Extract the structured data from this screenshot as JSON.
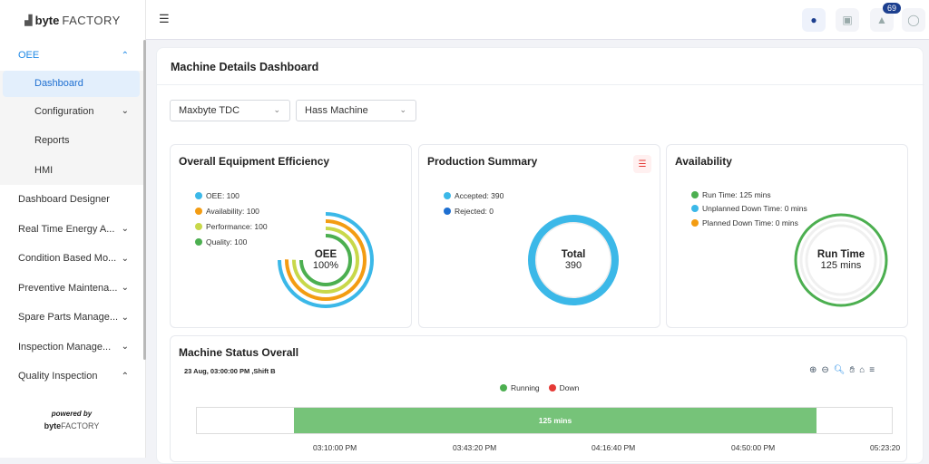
{
  "brand": {
    "logo_bold": "byte",
    "logo_rest": "FACTORY"
  },
  "sidebar": {
    "items": [
      {
        "label": "OEE",
        "expanded": true
      },
      {
        "label": "Dashboard",
        "active": true
      },
      {
        "label": "Configuration"
      },
      {
        "label": "Reports"
      },
      {
        "label": "HMI"
      },
      {
        "label": "Dashboard Designer"
      },
      {
        "label": "Real Time Energy A..."
      },
      {
        "label": "Condition Based Mo..."
      },
      {
        "label": "Preventive Maintena..."
      },
      {
        "label": "Spare Parts Manage..."
      },
      {
        "label": "Inspection Manage..."
      },
      {
        "label": "Quality Inspection"
      }
    ],
    "powered_by": "powered by",
    "powered_logo_bold": "byte",
    "powered_logo_rest": "FACTORY"
  },
  "topbar": {
    "notification_count": "69",
    "icons": [
      "chat-icon",
      "cart-icon",
      "bell-icon",
      "user-icon"
    ]
  },
  "page": {
    "title": "Machine Details Dashboard"
  },
  "filters": {
    "plant": "Maxbyte TDC",
    "machine": "Hass Machine"
  },
  "oee_card": {
    "title": "Overall Equipment Efficiency",
    "legend": [
      {
        "label": "OEE: 100",
        "color": "#3bb8e8"
      },
      {
        "label": "Availability: 100",
        "color": "#f39c12"
      },
      {
        "label": "Performance: 100",
        "color": "#c8d84a"
      },
      {
        "label": "Quality: 100",
        "color": "#4caf50"
      }
    ],
    "center_title": "OEE",
    "center_value": "100%"
  },
  "production_card": {
    "title": "Production Summary",
    "legend": [
      {
        "label": "Accepted: 390",
        "color": "#3bb8e8"
      },
      {
        "label": "Rejected: 0",
        "color": "#1e6fd1"
      }
    ],
    "center_title": "Total",
    "center_value": "390"
  },
  "availability_card": {
    "title": "Availability",
    "legend": [
      {
        "label": "Run Time: 125 mins",
        "color": "#4caf50"
      },
      {
        "label": "Unplanned Down Time: 0 mins",
        "color": "#3bb8e8"
      },
      {
        "label": "Planned Down Time: 0 mins",
        "color": "#f39c12"
      }
    ],
    "center_title": "Run Time",
    "center_value": "125 mins"
  },
  "status_card": {
    "title": "Machine Status Overall",
    "subtitle": "23 Aug, 03:00:00 PM ,Shift B",
    "legend": [
      {
        "label": "Running",
        "color": "#4caf50"
      },
      {
        "label": "Down",
        "color": "#e53935"
      }
    ],
    "bar_label": "125 mins",
    "ticks": [
      "03:10:00 PM",
      "03:43:20 PM",
      "04:16:40 PM",
      "04:50:00 PM",
      "05:23:20"
    ]
  }
}
